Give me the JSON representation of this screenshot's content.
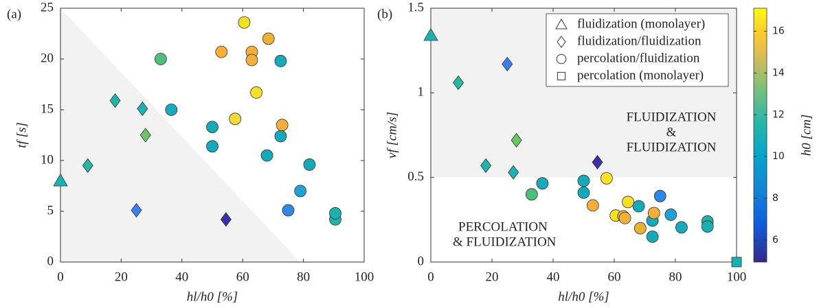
{
  "chart_data": [
    {
      "type": "scatter",
      "panel_label": "(a)",
      "x_label": "hl/h0 [%]",
      "y_label": "tf [s]",
      "xlim": [
        0,
        100
      ],
      "ylim": [
        0,
        25
      ],
      "xticks": [
        0,
        20,
        40,
        60,
        80,
        100
      ],
      "yticks": [
        0,
        5,
        10,
        15,
        20,
        25
      ],
      "shaded_region": {
        "x": [
          0,
          79
        ],
        "y": [
          25,
          0
        ]
      },
      "series": [
        {
          "marker": "triangle",
          "x": [
            0
          ],
          "values": [
            8
          ],
          "colors": [
            "#1fb0b4"
          ]
        },
        {
          "marker": "diamond",
          "x": [
            9,
            18,
            27,
            28,
            25,
            54.5
          ],
          "values": [
            9.5,
            15.9,
            15.1,
            12.5,
            5.1,
            4.2
          ],
          "colors": [
            "#27b8a4",
            "#20b3a8",
            "#1fb0b4",
            "#6cc466",
            "#3a7ef0",
            "#3b2fa8"
          ]
        },
        {
          "marker": "circle",
          "x": [
            33,
            36.5,
            50,
            50,
            53,
            57.5,
            60.5,
            63,
            63,
            64.5,
            68.5,
            72.5,
            72.5,
            73,
            68,
            75,
            79,
            82,
            90.5,
            90.5
          ],
          "values": [
            20,
            15,
            13.3,
            11.4,
            20.7,
            14.1,
            23.6,
            20.7,
            19.9,
            16.7,
            22,
            19.8,
            12.4,
            13.5,
            10.5,
            5.1,
            7,
            9.6,
            4.2,
            4.8
          ],
          "colors": [
            "#4cbf7a",
            "#18aab8",
            "#17a9b9",
            "#16a8ba",
            "#f5ae3c",
            "#f5d83a",
            "#f5e020",
            "#f5ae3c",
            "#f0b040",
            "#f8df2a",
            "#e9b135",
            "#17a9b9",
            "#17a9b9",
            "#f5ae3c",
            "#17a9b9",
            "#2f88e6",
            "#1fa1d6",
            "#18aab8",
            "#22b1a9",
            "#1ab0b2"
          ]
        }
      ]
    },
    {
      "type": "scatter",
      "panel_label": "(b)",
      "x_label": "hl/h0 [%]",
      "y_label": "vf [cm/s]",
      "xlim": [
        0,
        100
      ],
      "ylim": [
        0,
        1.5
      ],
      "xticks": [
        0,
        20,
        40,
        60,
        80,
        100
      ],
      "yticks": [
        0,
        0.5,
        1,
        1.5
      ],
      "shaded_region": {
        "y": [
          0.5,
          1.5
        ]
      },
      "legend": "upper right",
      "annotations": [
        [
          "FLUIDIZATION",
          "&",
          "FLUIDIZATION"
        ],
        [
          "PERCOLATION",
          "& FLUIDIZATION"
        ]
      ],
      "series": [
        {
          "name": "fluidization (monolayer)",
          "marker": "triangle",
          "x": [
            0
          ],
          "values": [
            1.34
          ],
          "colors": [
            "#1fb0b4"
          ]
        },
        {
          "name": "fluidization/fluidization",
          "marker": "diamond",
          "x": [
            9,
            18,
            25,
            27,
            28,
            54.5
          ],
          "values": [
            1.06,
            0.57,
            1.17,
            0.53,
            0.72,
            0.59
          ],
          "colors": [
            "#27b8a4",
            "#20b3a8",
            "#3a7ef0",
            "#1fb0b4",
            "#6cc466",
            "#3b2fa8"
          ]
        },
        {
          "name": "percolation/fluidization",
          "marker": "circle",
          "x": [
            33,
            36.5,
            50,
            50,
            53,
            57.5,
            60.5,
            63,
            63.5,
            64.5,
            68,
            68.5,
            72.5,
            72.5,
            73,
            75,
            78.5,
            82,
            90.5,
            90.5
          ],
          "values": [
            0.4,
            0.465,
            0.48,
            0.41,
            0.335,
            0.495,
            0.275,
            0.27,
            0.26,
            0.355,
            0.33,
            0.2,
            0.245,
            0.15,
            0.29,
            0.39,
            0.28,
            0.205,
            0.24,
            0.21
          ],
          "colors": [
            "#4cbf7a",
            "#18aab8",
            "#17a9b9",
            "#16a8ba",
            "#f5ae3c",
            "#f8df2a",
            "#f5e020",
            "#f5ae3c",
            "#f0b040",
            "#f8df2a",
            "#17a9b9",
            "#e9b135",
            "#17a9b9",
            "#17a9b9",
            "#f5ae3c",
            "#2f88e6",
            "#1fa1d6",
            "#18aab8",
            "#22b1a9",
            "#1ab0b2"
          ]
        },
        {
          "name": "percolation (monolayer)",
          "marker": "square",
          "x": [
            100
          ],
          "values": [
            0
          ],
          "colors": [
            "#1ab0b2"
          ]
        }
      ],
      "colorbar": {
        "label": "h0 [cm]",
        "lim": [
          4.95,
          17.1
        ],
        "ticks": [
          6,
          8,
          10,
          12,
          14,
          16
        ]
      }
    }
  ]
}
